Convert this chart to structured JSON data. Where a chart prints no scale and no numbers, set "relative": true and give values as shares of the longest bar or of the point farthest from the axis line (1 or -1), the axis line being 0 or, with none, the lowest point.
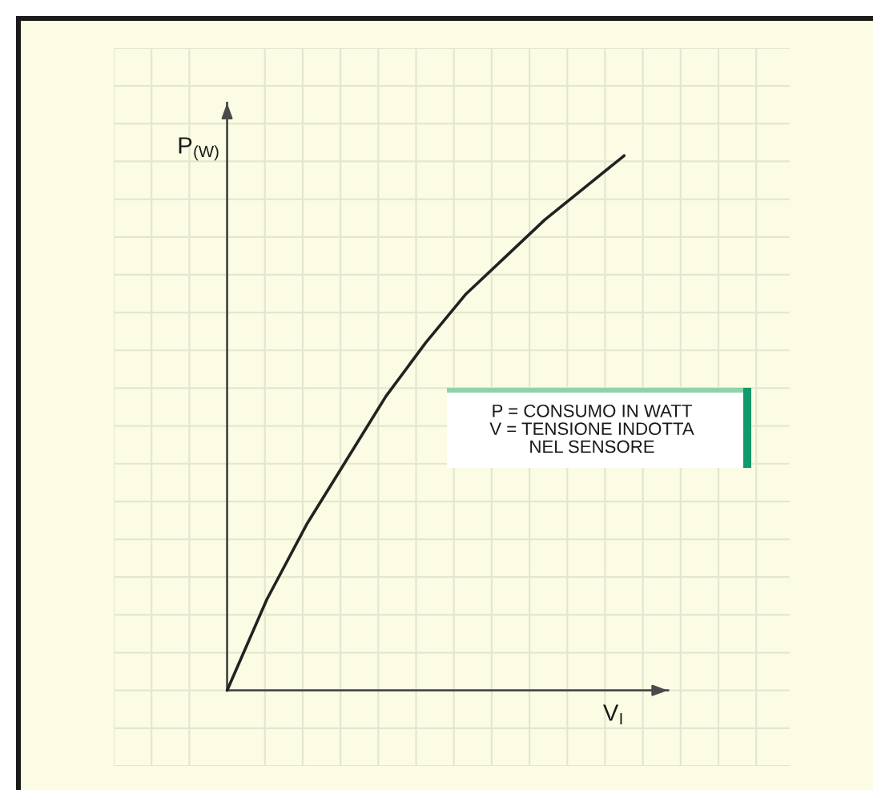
{
  "chart_data": {
    "type": "line",
    "relative": true,
    "categories": [
      null,
      null,
      null,
      null,
      null,
      null,
      null,
      null,
      null,
      null,
      null
    ],
    "series": [
      {
        "color": "#222222",
        "values": [
          0,
          0.17,
          0.31,
          0.43,
          0.55,
          0.65,
          0.74,
          0.81,
          0.88,
          0.94,
          1
        ]
      }
    ],
    "xlabel": "V$_{I}$",
    "ylabel": "P$_{(W)}$",
    "annotations": [
      "P = CONSUMO IN WATT\nV = TENSIONE INDOTTA\nNEL SENSORE"
    ],
    "grid": true
  }
}
